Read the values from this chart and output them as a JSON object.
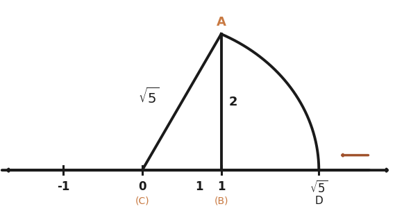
{
  "number_line_xlim": [
    -1.8,
    3.2
  ],
  "sqrt5": 2.23606797749979,
  "point_B_x": 1,
  "point_C_x": 0,
  "point_A_data": [
    1,
    2
  ],
  "label_color_orange": "#C87941",
  "label_color_black": "#1a1a1a",
  "line_color": "#1a1a1a",
  "arrow_color": "#A0522D",
  "bg_color": "#ffffff",
  "axis_linewidth": 2.8,
  "geo_linewidth": 2.8,
  "x_scale": 1.0,
  "y_scale": 2.5,
  "xlim": [
    -1.8,
    3.2
  ],
  "ylim": [
    -0.6,
    2.5
  ]
}
